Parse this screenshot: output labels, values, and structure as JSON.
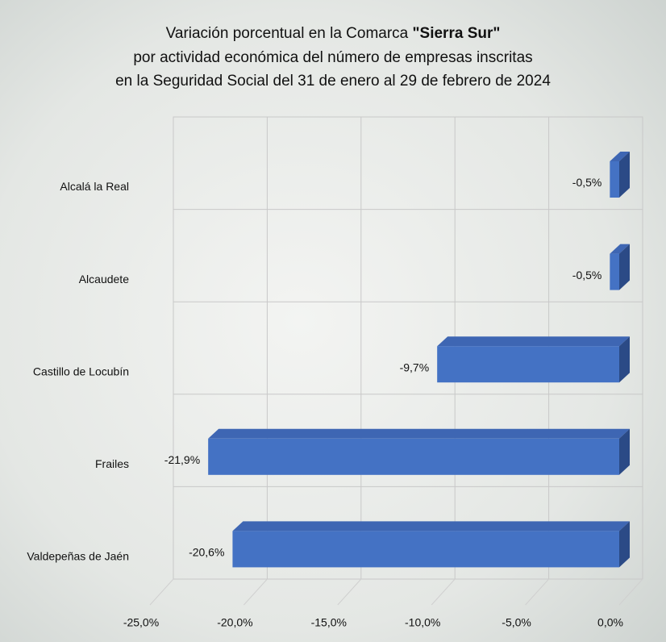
{
  "chart_data": {
    "type": "bar3d_horizontal",
    "title": [
      [
        "Variación porcentual en la Comarca ",
        "\"Sierra Sur\""
      ],
      [
        "por actividad económica del número de empresas inscritas"
      ],
      [
        "en la Seguridad Social del 31 de enero al 29 de febrero de 2024"
      ]
    ],
    "categories": [
      "Alcalá la Real",
      "Alcaudete",
      "Castillo de Locubín",
      "Frailes",
      "Valdepeñas de Jaén"
    ],
    "values": [
      -0.5,
      -0.5,
      -9.7,
      -21.9,
      -20.6
    ],
    "value_labels": [
      "-0,5%",
      "-0,5%",
      "-9,7%",
      "-21,9%",
      "-20,6%"
    ],
    "color": "#4472c4",
    "xlim": [
      -25,
      0
    ],
    "xticks": [
      {
        "value": -25,
        "label": "-25,0%"
      },
      {
        "value": -20,
        "label": "-20,0%"
      },
      {
        "value": -15,
        "label": "-15,0%"
      },
      {
        "value": -10,
        "label": "-10,0%"
      },
      {
        "value": -5,
        "label": "-5,0%"
      },
      {
        "value": 0,
        "label": "0,0%"
      }
    ],
    "grid": true
  }
}
